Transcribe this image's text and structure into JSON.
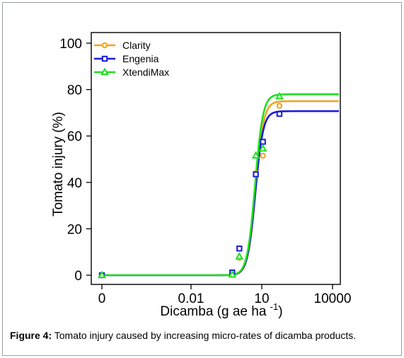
{
  "chart_data": {
    "type": "scatter",
    "xlabel": "Dicamba (g ae ha",
    "xlabel_sup": "-1",
    "xlabel_close": ")",
    "ylabel": "Tomato injury (%)",
    "xscale": "log",
    "ylim": [
      0,
      100
    ],
    "xticks": [
      {
        "value": 0,
        "label": "0"
      },
      {
        "value": 0.01,
        "label": "0.01"
      },
      {
        "value": 10,
        "label": "10"
      },
      {
        "value": 10000,
        "label": "10000"
      }
    ],
    "yticks": [
      0,
      20,
      40,
      60,
      80,
      100
    ],
    "legend_position": "top-left",
    "series": [
      {
        "name": "Clarity",
        "color": "#f5a21b",
        "marker": "circle",
        "fit": {
          "upper": 75,
          "ed50": 5.6,
          "slope": 2.6
        },
        "points": [
          {
            "x": 0,
            "y": 0
          },
          {
            "x": 0.56,
            "y": 0.3
          },
          {
            "x": 1.12,
            "y": 7.5
          },
          {
            "x": 5.6,
            "y": 44
          },
          {
            "x": 11.2,
            "y": 51.5
          },
          {
            "x": 56,
            "y": 73
          }
        ]
      },
      {
        "name": "Engenia",
        "color": "#1a1adb",
        "marker": "square",
        "fit": {
          "upper": 70.7,
          "ed50": 5.3,
          "slope": 2.6
        },
        "points": [
          {
            "x": 0,
            "y": 0
          },
          {
            "x": 0.56,
            "y": 1.2
          },
          {
            "x": 1.12,
            "y": 11.5
          },
          {
            "x": 5.6,
            "y": 43.5
          },
          {
            "x": 11.2,
            "y": 57.5
          },
          {
            "x": 56,
            "y": 69.5
          }
        ]
      },
      {
        "name": "XtendiMax",
        "color": "#1ee01e",
        "marker": "triangle",
        "fit": {
          "upper": 78,
          "ed50": 5.2,
          "slope": 2.6
        },
        "points": [
          {
            "x": 0,
            "y": 0
          },
          {
            "x": 0.56,
            "y": 0.2
          },
          {
            "x": 1.12,
            "y": 8
          },
          {
            "x": 5.6,
            "y": 51.5
          },
          {
            "x": 11.2,
            "y": 54.5
          },
          {
            "x": 56,
            "y": 77
          }
        ]
      }
    ]
  },
  "caption": {
    "label": "Figure 4:",
    "text": " Tomato injury caused by increasing micro-rates of dicamba products."
  }
}
